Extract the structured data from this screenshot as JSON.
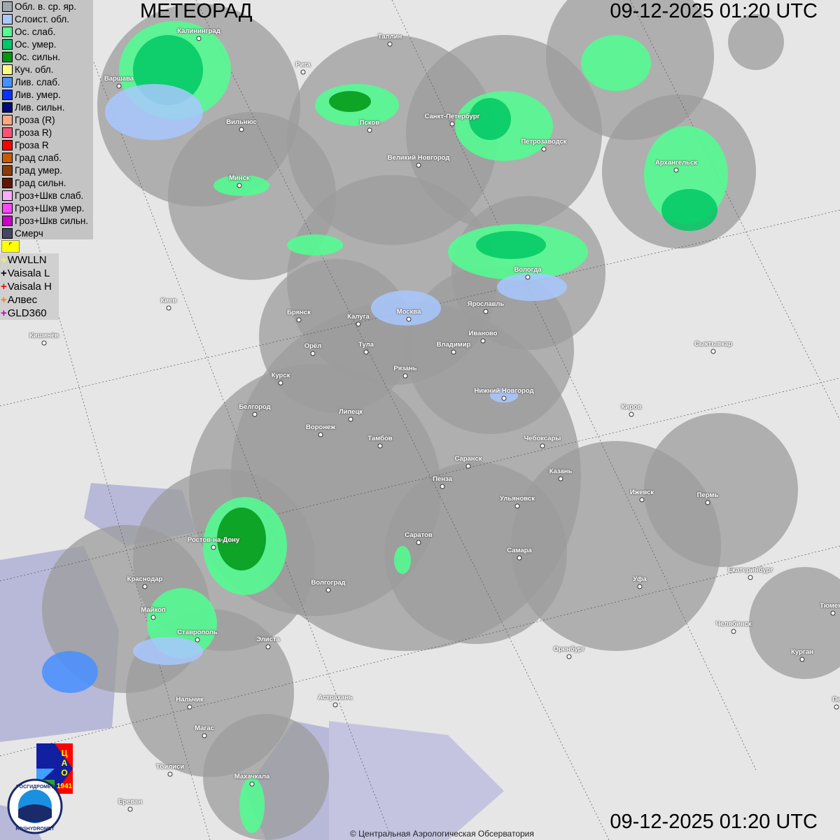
{
  "title": "МЕТЕОРАД",
  "timestamp_top": "09-12-2025  01:20 UTC",
  "timestamp_bottom": "09-12-2025  01:20 UTC",
  "copyright": "© Центральная Аэрологическая Обсерватория",
  "legend": [
    {
      "label": "Обл. в. ср. яр.",
      "color": "#a0a8b0"
    },
    {
      "label": "Слоист. обл.",
      "color": "#a8c8ff"
    },
    {
      "label": "Ос. слаб.",
      "color": "#50ff90"
    },
    {
      "label": "Ос. умер.",
      "color": "#00c864"
    },
    {
      "label": "Ос. сильн.",
      "color": "#009614"
    },
    {
      "label": "Куч. обл.",
      "color": "#ffff80"
    },
    {
      "label": "Лив. слаб.",
      "color": "#4690ff"
    },
    {
      "label": "Лив. умер.",
      "color": "#0a32ff"
    },
    {
      "label": "Лив. сильн.",
      "color": "#000a78"
    },
    {
      "label": "Гроза (R)",
      "color": "#ffa880"
    },
    {
      "label": "Гроза R)",
      "color": "#ff5078"
    },
    {
      "label": "Гроза R",
      "color": "#ff0000"
    },
    {
      "label": "Град слаб.",
      "color": "#c85a00"
    },
    {
      "label": "Град умер.",
      "color": "#8c3c0a"
    },
    {
      "label": "Град сильн.",
      "color": "#641400"
    },
    {
      "label": "Гроз+Шкв слаб.",
      "color": "#ffaaff"
    },
    {
      "label": "Гроз+Шкв умер.",
      "color": "#ff46ff"
    },
    {
      "label": "Гроз+Шкв сильн.",
      "color": "#c800c8"
    },
    {
      "label": "Смерч",
      "color": "#464664"
    }
  ],
  "flag_icon": "lightning-flag-icon",
  "lightning": [
    {
      "label": "WWLLN",
      "color": "#ffff00"
    },
    {
      "label": "Vaisala L",
      "color": "#000000"
    },
    {
      "label": "Vaisala H",
      "color": "#ff0000"
    },
    {
      "label": "Алвес",
      "color": "#ff8000"
    },
    {
      "label": "GLD360",
      "color": "#c000c0"
    }
  ],
  "logos": {
    "tsao": "ЦАО 1941",
    "roshydromet": "РОСГИДРОМЕТ ROSHYDROMET"
  },
  "cities": [
    "Калининград",
    "Таллин",
    "Рига",
    "Варшава",
    "Вильнюс",
    "Псков",
    "Санкт-Петербург",
    "Петрозаводск",
    "Архангельск",
    "Великий Новгород",
    "Минск",
    "Вологда",
    "Ярославль",
    "Киев",
    "Брянск",
    "Калуга",
    "Москва",
    "Иваново",
    "Кишинёв",
    "Орёл",
    "Тула",
    "Владимир",
    "Сыктывкар",
    "Рязань",
    "Курск",
    "Нижний Новгород",
    "Белгород",
    "Липецк",
    "Киров",
    "Воронеж",
    "Тамбов",
    "Чебоксары",
    "Саранск",
    "Казань",
    "Пенза",
    "Ижевск",
    "Пермь",
    "Ульяновск",
    "Саратов",
    "Ростов-на-Дону",
    "Самара",
    "Уфа",
    "Екатеринбург",
    "Краснодар",
    "Волгоград",
    "Тюмень",
    "Майкоп",
    "Челябинск",
    "Ставрополь",
    "Элиста",
    "Оренбург",
    "Курган",
    "Нальчик",
    "Астрахань",
    "Магас",
    "Тбилиси",
    "Махачкала",
    "Ереван",
    "Пе"
  ]
}
